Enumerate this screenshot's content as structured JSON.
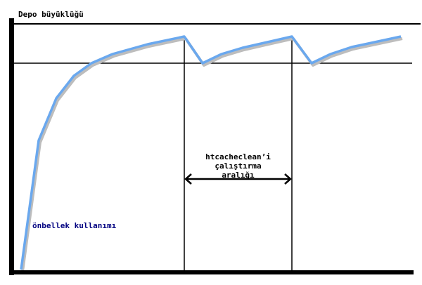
{
  "labels": {
    "y_axis": "Depo büyüklüğü",
    "curve": "önbellek kullanımı",
    "interval_lines": [
      "htcacheclean’i",
      "çalıştırma",
      "aralığı"
    ]
  },
  "colors": {
    "curve": "#6aa8ee",
    "curve_shadow": "#b8b8b8",
    "curve_label": "#000080",
    "lines": "#000000"
  }
}
